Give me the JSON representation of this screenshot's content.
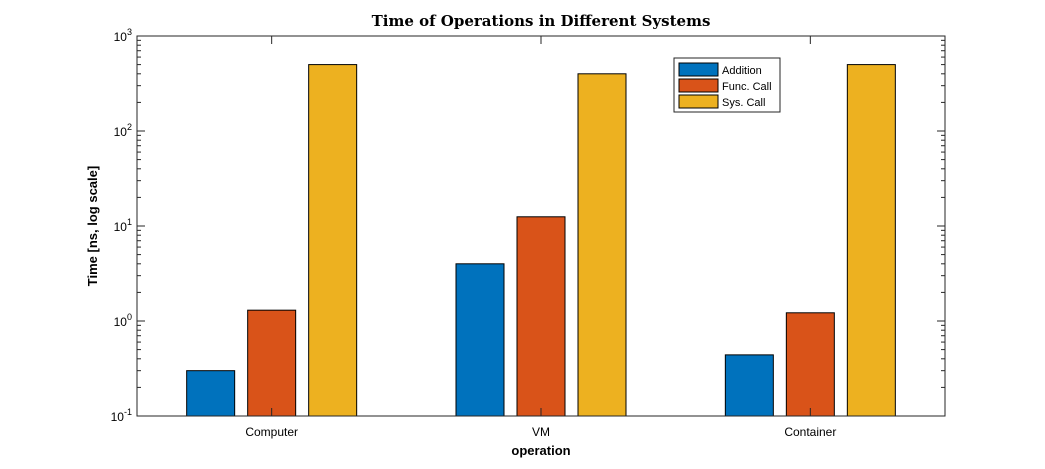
{
  "chart_data": {
    "type": "bar",
    "title": "Time of Operations in Different Systems",
    "xlabel": "operation",
    "ylabel": "Time [ns, log scale]",
    "yscale": "log",
    "ylim": [
      0.1,
      1000
    ],
    "yticks": [
      {
        "base": "10",
        "exp": "-1",
        "value": 0.1
      },
      {
        "base": "10",
        "exp": "0",
        "value": 1
      },
      {
        "base": "10",
        "exp": "1",
        "value": 10
      },
      {
        "base": "10",
        "exp": "2",
        "value": 100
      },
      {
        "base": "10",
        "exp": "3",
        "value": 1000
      }
    ],
    "categories": [
      "Computer",
      "VM",
      "Container"
    ],
    "series": [
      {
        "name": "Addition",
        "color": "#0072BD",
        "values": [
          0.3,
          4.0,
          0.44
        ]
      },
      {
        "name": "Func. Call",
        "color": "#D95319",
        "values": [
          1.3,
          12.5,
          1.22
        ]
      },
      {
        "name": "Sys. Call",
        "color": "#EDB120",
        "values": [
          500,
          400,
          500
        ]
      }
    ],
    "legend_position": "top-right",
    "grid": false
  }
}
